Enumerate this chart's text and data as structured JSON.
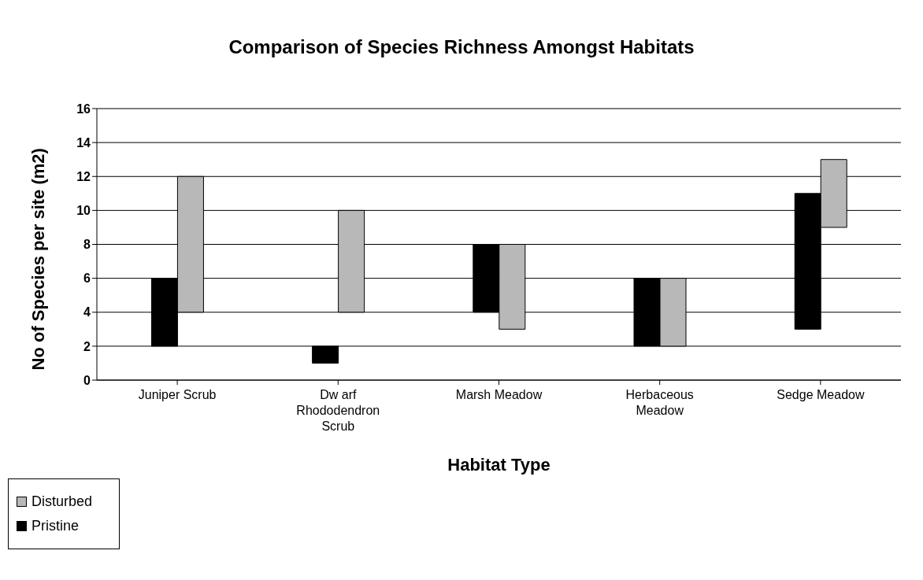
{
  "chart_data": {
    "type": "bar",
    "title": "Comparison of Species Richness Amongst Habitats",
    "xlabel": "Habitat Type",
    "ylabel": "No of Species per site (m2)",
    "categories": [
      "Juniper Scrub",
      "Dw arf Rhododendron Scrub",
      "Marsh Meadow",
      "Herbaceous Meadow",
      "Sedge Meadow"
    ],
    "series": [
      {
        "name": "Pristine",
        "color": "#000000",
        "base": [
          2,
          1,
          4,
          2,
          3
        ],
        "values": [
          4,
          1,
          4,
          4,
          8
        ]
      },
      {
        "name": "Disturbed",
        "color": "#b8b8b8",
        "base": [
          4,
          4,
          3,
          2,
          9
        ],
        "values": [
          8,
          6,
          5,
          4,
          4
        ]
      }
    ],
    "ylim": [
      0,
      16
    ],
    "yticks": [
      0,
      2,
      4,
      6,
      8,
      10,
      12,
      14,
      16
    ],
    "grid": "y",
    "legend": "bottom left"
  }
}
